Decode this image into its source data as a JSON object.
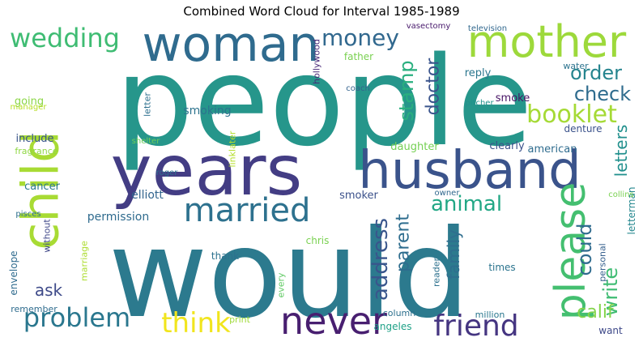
{
  "chart_data": {
    "type": "wordcloud",
    "title": "Combined Word Cloud for Interval 1985-1989",
    "words": [
      {
        "text": "people",
        "weight": 100,
        "color": "#26968b"
      },
      {
        "text": "would",
        "weight": 98,
        "color": "#2c7a8e"
      },
      {
        "text": "years",
        "weight": 62,
        "color": "#433d84"
      },
      {
        "text": "woman",
        "weight": 55,
        "color": "#2f6b8e"
      },
      {
        "text": "husband",
        "weight": 55,
        "color": "#3a538b"
      },
      {
        "text": "child",
        "weight": 54,
        "color": "#a8db34"
      },
      {
        "text": "mother",
        "weight": 45,
        "color": "#9dd93b"
      },
      {
        "text": "please",
        "weight": 44,
        "color": "#44bf70"
      },
      {
        "text": "never",
        "weight": 34,
        "color": "#481f70"
      },
      {
        "text": "married",
        "weight": 32,
        "color": "#2d718e"
      },
      {
        "text": "friend",
        "weight": 29,
        "color": "#453581"
      },
      {
        "text": "think",
        "weight": 28,
        "color": "#f1e51d"
      },
      {
        "text": "wedding",
        "weight": 27,
        "color": "#3fbc73"
      },
      {
        "text": "problem",
        "weight": 27,
        "color": "#2a778e"
      },
      {
        "text": "booklet",
        "weight": 27,
        "color": "#a5da35"
      },
      {
        "text": "money",
        "weight": 24,
        "color": "#31688e"
      },
      {
        "text": "address",
        "weight": 23,
        "color": "#39558c"
      },
      {
        "text": "animal",
        "weight": 23,
        "color": "#22a785"
      },
      {
        "text": "order",
        "weight": 22,
        "color": "#25848e"
      },
      {
        "text": "check",
        "weight": 22,
        "color": "#2f6c8e"
      },
      {
        "text": "could",
        "weight": 22,
        "color": "#2f6b8e"
      },
      {
        "text": "write",
        "weight": 21,
        "color": "#3fbc73"
      },
      {
        "text": "stamp",
        "weight": 20,
        "color": "#29af7f"
      },
      {
        "text": "doctor",
        "weight": 19,
        "color": "#3a548c"
      },
      {
        "text": "parent",
        "weight": 18,
        "color": "#2e6d8e"
      },
      {
        "text": "calif",
        "weight": 18,
        "color": "#84d44b"
      },
      {
        "text": "letters",
        "weight": 17,
        "color": "#21908d"
      },
      {
        "text": "family",
        "weight": 17,
        "color": "#2e6e8e"
      },
      {
        "text": "ask",
        "weight": 17,
        "color": "#3e4a89"
      },
      {
        "text": "letterman",
        "weight": 12,
        "color": "#24878e"
      },
      {
        "text": "smoking",
        "weight": 12,
        "color": "#2c738e"
      },
      {
        "text": "permission",
        "weight": 12,
        "color": "#2f6b8e"
      },
      {
        "text": "elliott",
        "weight": 12,
        "color": "#32658e"
      },
      {
        "text": "daughter",
        "weight": 11,
        "color": "#75d054"
      },
      {
        "text": "clearly",
        "weight": 11,
        "color": "#3b528b"
      },
      {
        "text": "american",
        "weight": 11,
        "color": "#2f6c8e"
      },
      {
        "text": "include",
        "weight": 11,
        "color": "#39558c"
      },
      {
        "text": "cancer",
        "weight": 11,
        "color": "#2a788e"
      },
      {
        "text": "smoker",
        "weight": 11,
        "color": "#3b518b"
      },
      {
        "text": "smoke",
        "weight": 11,
        "color": "#471365"
      },
      {
        "text": "reply",
        "weight": 11,
        "color": "#2a768e"
      },
      {
        "text": "going",
        "weight": 11,
        "color": "#8bd646"
      },
      {
        "text": "denture",
        "weight": 10,
        "color": "#3b528b"
      },
      {
        "text": "father",
        "weight": 10,
        "color": "#7ad151"
      },
      {
        "text": "chris",
        "weight": 10,
        "color": "#7ad151"
      },
      {
        "text": "thank",
        "weight": 10,
        "color": "#2c718e"
      },
      {
        "text": "times",
        "weight": 10,
        "color": "#2b748e"
      },
      {
        "text": "envelope",
        "weight": 10,
        "color": "#2f6b8e"
      },
      {
        "text": "want",
        "weight": 10,
        "color": "#3e4989"
      },
      {
        "text": "angeles",
        "weight": 10,
        "color": "#1fa187"
      },
      {
        "text": "column",
        "weight": 9,
        "color": "#2d708e"
      },
      {
        "text": "print",
        "weight": 9,
        "color": "#a0da39"
      },
      {
        "text": "million",
        "weight": 9,
        "color": "#2a778e"
      },
      {
        "text": "remember",
        "weight": 9,
        "color": "#2f6c8e"
      },
      {
        "text": "fragrance",
        "weight": 8,
        "color": "#8fd744"
      },
      {
        "text": "without",
        "weight": 8,
        "color": "#3f4788"
      },
      {
        "text": "marriage",
        "weight": 8,
        "color": "#addc30"
      },
      {
        "text": "personal",
        "weight": 8,
        "color": "#355f8d"
      },
      {
        "text": "reader",
        "weight": 8,
        "color": "#2d718e"
      },
      {
        "text": "every",
        "weight": 8,
        "color": "#5ec962"
      },
      {
        "text": "hollywood",
        "weight": 8,
        "color": "#482878"
      },
      {
        "text": "letter",
        "weight": 8,
        "color": "#2d708e"
      },
      {
        "text": "linklater",
        "weight": 8,
        "color": "#b5de2b"
      },
      {
        "text": "water",
        "weight": 8,
        "color": "#2c738e"
      },
      {
        "text": "vasectomy",
        "weight": 7,
        "color": "#481a6c"
      },
      {
        "text": "television",
        "weight": 7,
        "color": "#31688e"
      },
      {
        "text": "manager",
        "weight": 7,
        "color": "#b8de29"
      },
      {
        "text": "coach",
        "weight": 7,
        "color": "#33638d"
      },
      {
        "text": "pitcher",
        "weight": 7,
        "color": "#21918c"
      },
      {
        "text": "shelter",
        "weight": 7,
        "color": "#6ccd5a"
      },
      {
        "text": "roger",
        "weight": 7,
        "color": "#2d708e"
      },
      {
        "text": "pisces",
        "weight": 7,
        "color": "#2d708e"
      },
      {
        "text": "owner",
        "weight": 7,
        "color": "#31688e"
      },
      {
        "text": "collins",
        "weight": 7,
        "color": "#7ad151"
      }
    ]
  }
}
